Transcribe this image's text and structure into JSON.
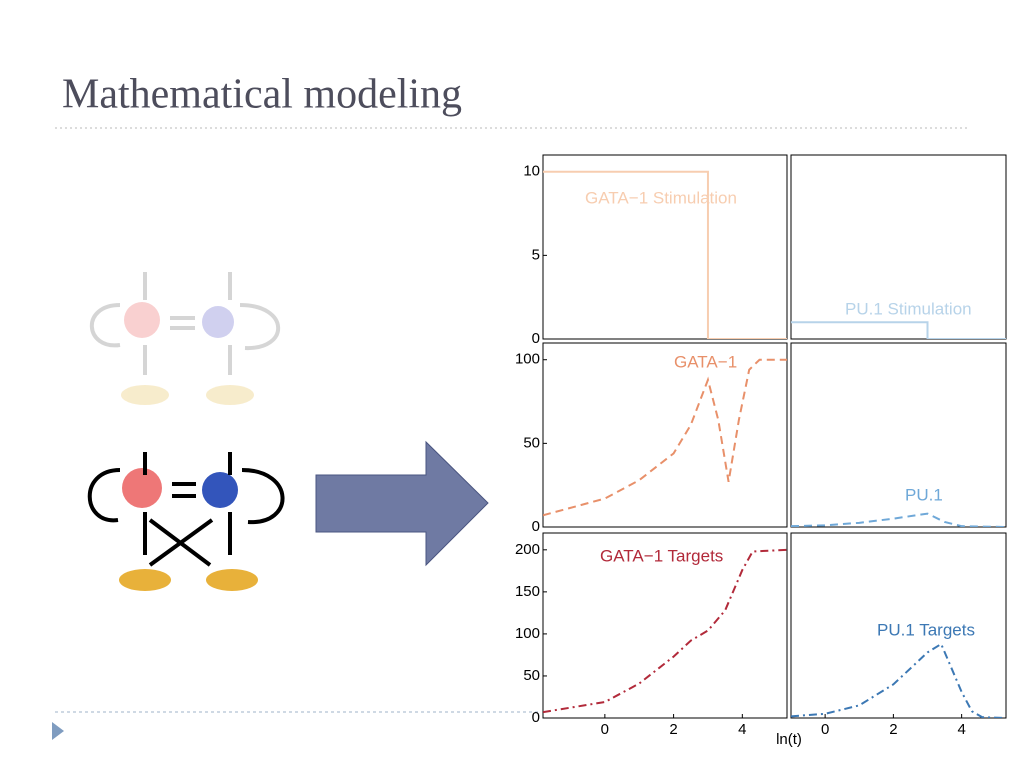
{
  "header": {
    "title": "Mathematical modeling"
  },
  "chart_data": [
    {
      "type": "line",
      "xlim": [
        -1.8,
        5.3
      ],
      "ylim": [
        0,
        11
      ],
      "yticks": [
        0,
        5,
        10
      ],
      "series": [
        {
          "name": "GATA−1 Stimulation",
          "color": "#f7cdb0",
          "style": "solid",
          "x": [
            -1.8,
            3,
            3,
            5.3
          ],
          "values": [
            10,
            10,
            0,
            0
          ]
        }
      ]
    },
    {
      "type": "line",
      "xlim": [
        -1,
        5.3
      ],
      "ylim": [
        0,
        11
      ],
      "series": [
        {
          "name": "PU.1 Stimulation",
          "color": "#b7d3e9",
          "style": "solid",
          "x": [
            -1,
            3,
            3,
            5.3
          ],
          "values": [
            1,
            1,
            0,
            0
          ]
        }
      ]
    },
    {
      "type": "line",
      "xlim": [
        -1.8,
        5.3
      ],
      "ylim": [
        0,
        110
      ],
      "yticks": [
        0,
        50,
        100
      ],
      "series": [
        {
          "name": "GATA−1",
          "color": "#e8906a",
          "style": "dashed",
          "x": [
            -1.8,
            0,
            1,
            2,
            2.5,
            3,
            3.3,
            3.6,
            3.9,
            4.2,
            4.5,
            5.3
          ],
          "values": [
            7,
            17,
            28,
            44,
            61,
            88,
            64,
            27,
            64,
            94,
            100,
            100
          ]
        }
      ]
    },
    {
      "type": "line",
      "xlim": [
        -1,
        5.3
      ],
      "ylim": [
        0,
        110
      ],
      "series": [
        {
          "name": "PU.1",
          "color": "#6fa8d8",
          "style": "dashed",
          "x": [
            -1,
            0,
            1,
            2,
            3,
            3.5,
            4,
            5.3
          ],
          "values": [
            0.5,
            1,
            2.5,
            5,
            8,
            3,
            0.5,
            0
          ]
        }
      ]
    },
    {
      "type": "line",
      "xlim": [
        -1.8,
        5.3
      ],
      "ylim": [
        0,
        220
      ],
      "yticks": [
        0,
        50,
        100,
        150,
        200
      ],
      "xticks": [
        0,
        2,
        4
      ],
      "xlabel": "ln(t)",
      "series": [
        {
          "name": "GATA−1 Targets",
          "color": "#b22a3a",
          "style": "dashdot",
          "x": [
            -1.8,
            0,
            1,
            2,
            2.5,
            3,
            3.5,
            4,
            4.3,
            5.3
          ],
          "values": [
            7,
            19,
            41,
            73,
            92,
            104,
            128,
            176,
            198,
            200
          ]
        }
      ]
    },
    {
      "type": "line",
      "xlim": [
        -1,
        5.3
      ],
      "ylim": [
        0,
        220
      ],
      "xticks": [
        0,
        2,
        4
      ],
      "series": [
        {
          "name": "PU.1 Targets",
          "color": "#3c78b4",
          "style": "dashdot",
          "x": [
            -1,
            0,
            1,
            2,
            3,
            3.4,
            4,
            4.3,
            4.6,
            5.3
          ],
          "values": [
            2,
            5,
            15,
            40,
            78,
            88,
            31,
            8,
            1,
            0
          ]
        }
      ]
    }
  ]
}
